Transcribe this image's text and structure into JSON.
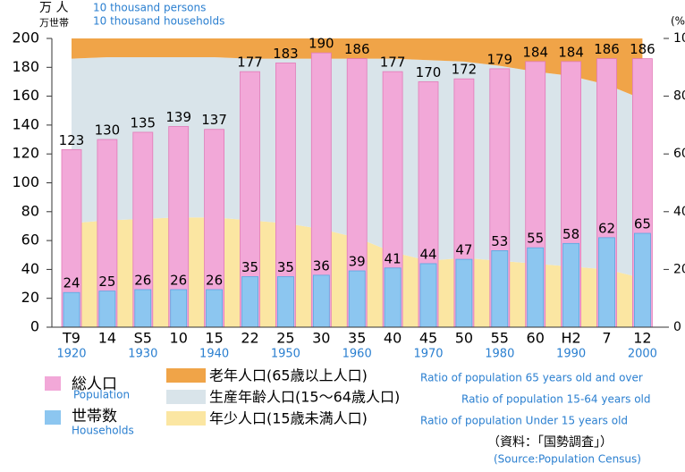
{
  "chart_data": {
    "type": "bar",
    "y_unit_label": "万 人",
    "y_unit_label2": "万世帯",
    "y_unit_en": "10 thousand persons",
    "y_unit_en2": "10 thousand households",
    "y2_unit_label": "(%)",
    "categories": [
      "T9",
      "14",
      "S5",
      "10",
      "15",
      "22",
      "25",
      "30",
      "35",
      "40",
      "45",
      "50",
      "55",
      "60",
      "H2",
      "7",
      "12"
    ],
    "year_labels": [
      "1920",
      null,
      "1930",
      null,
      "1940",
      null,
      "1950",
      null,
      "1960",
      null,
      "1970",
      null,
      "1980",
      null,
      "1990",
      null,
      "2000"
    ],
    "series": [
      {
        "name": "総人口",
        "name_en": "Population",
        "color": "#f2a8d8",
        "values": [
          123,
          130,
          135,
          139,
          137,
          177,
          183,
          190,
          186,
          177,
          170,
          172,
          179,
          184,
          184,
          186,
          186
        ]
      },
      {
        "name": "世帯数",
        "name_en": "Households",
        "color": "#8cc6f0",
        "values": [
          24,
          25,
          26,
          26,
          26,
          35,
          35,
          36,
          39,
          41,
          44,
          47,
          53,
          55,
          58,
          62,
          65
        ]
      }
    ],
    "area_series": [
      {
        "name": "年少人口(15歳未満人口)",
        "name_en": "Ratio of population Under 15 years old",
        "color": "#fbe6a2",
        "axis": "y2",
        "values": [
          36,
          37,
          37.5,
          38,
          38,
          37,
          36,
          34,
          31,
          26,
          23,
          24,
          23,
          22,
          21,
          20,
          17
        ]
      },
      {
        "name": "生産年齢人口(15〜64歳人口)",
        "name_en": "Ratio of population 15-64 years old",
        "color": "#d9e4ea",
        "axis": "y2",
        "values": [
          57,
          56.5,
          56,
          55.5,
          55.5,
          56,
          57,
          59,
          62,
          67,
          69.5,
          68,
          67.5,
          66.5,
          66,
          64,
          62
        ]
      },
      {
        "name": "老年人口(65歳以上人口)",
        "name_en": "Ratio of population 65 years old and over",
        "color": "#f0a448",
        "axis": "y2",
        "values": [
          7,
          6.5,
          6.5,
          6.5,
          6.5,
          7,
          7,
          7,
          7,
          7,
          7.5,
          8,
          9.5,
          11.5,
          13,
          16,
          21
        ]
      }
    ],
    "ylim": [
      0,
      200
    ],
    "yticks": [
      0,
      20,
      40,
      60,
      80,
      100,
      120,
      140,
      160,
      180,
      200
    ],
    "y2lim": [
      0,
      100
    ],
    "y2ticks": [
      0,
      20,
      40,
      60,
      80,
      100
    ],
    "source": "（資料：「国勢調査」）",
    "source_en": "(Source:Population Census)"
  }
}
